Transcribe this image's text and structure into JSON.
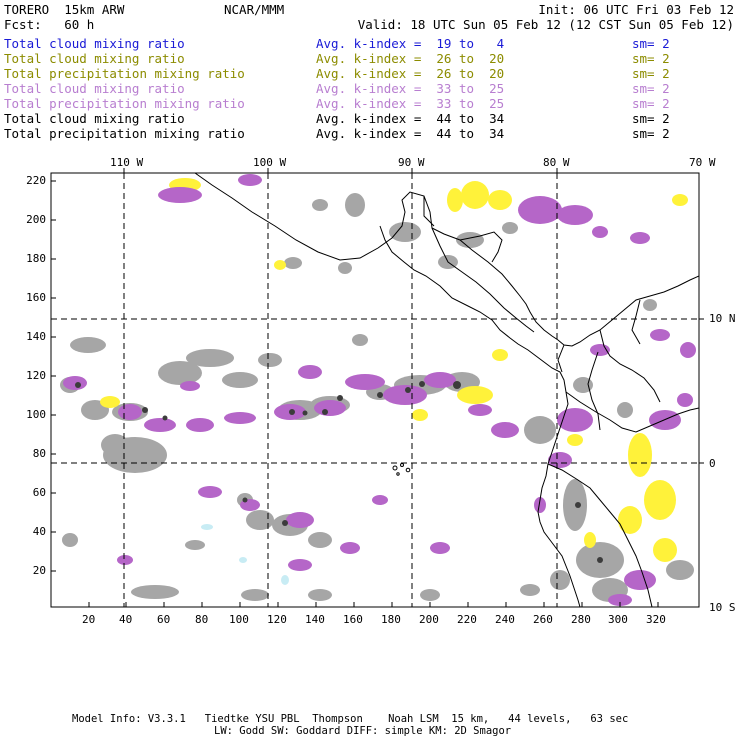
{
  "header": {
    "model": "TORERO  15km ARW",
    "org": "NCAR/MMM",
    "init": "Init: 06 UTC Fri 03 Feb 12",
    "fcst": "Fcst:   60 h",
    "valid": "Valid: 18 UTC Sun 05 Feb 12 (12 CST Sun 05 Feb 12)"
  },
  "legend": [
    {
      "field": "Total cloud mixing ratio",
      "kindex": "Avg. k-index =  19 to   4",
      "sm": "sm= 2",
      "color": "#1a1ad6"
    },
    {
      "field": "Total cloud mixing ratio",
      "kindex": "Avg. k-index =  26 to  20",
      "sm": "sm= 2",
      "color": "#8c8c00"
    },
    {
      "field": "Total precipitation mixing ratio",
      "kindex": "Avg. k-index =  26 to  20",
      "sm": "sm= 2",
      "color": "#8c8c00"
    },
    {
      "field": "Total cloud mixing ratio",
      "kindex": "Avg. k-index =  33 to  25",
      "sm": "sm= 2",
      "color": "#b87ed0"
    },
    {
      "field": "Total precipitation mixing ratio",
      "kindex": "Avg. k-index =  33 to  25",
      "sm": "sm= 2",
      "color": "#b87ed0"
    },
    {
      "field": "Total cloud mixing ratio",
      "kindex": "Avg. k-index =  44 to  34",
      "sm": "sm= 2",
      "color": "#000000"
    },
    {
      "field": "Total precipitation mixing ratio",
      "kindex": "Avg. k-index =  44 to  34",
      "sm": "sm= 2",
      "color": "#000000"
    }
  ],
  "map": {
    "top_longitudes": [
      "110 W",
      "100 W",
      "90 W",
      "80 W",
      "70 W"
    ],
    "right_latitudes": [
      "10 N",
      "0",
      "10 S"
    ],
    "left_grid_ticks": [
      "220",
      "200",
      "180",
      "160",
      "140",
      "120",
      "100",
      "80",
      "60",
      "40",
      "20"
    ],
    "bottom_grid_ticks": [
      "20",
      "40",
      "60",
      "80",
      "100",
      "120",
      "140",
      "160",
      "180",
      "200",
      "220",
      "240",
      "260",
      "280",
      "300",
      "320"
    ],
    "colors": {
      "gray": "#a6a6a6",
      "dark_gray": "#3c3c3c",
      "purple": "#b566c8",
      "yellow": "#fff23a",
      "light_blue": "#c8ecf4"
    }
  },
  "footer": {
    "line1": "Model Info: V3.3.1   Tiedtke YSU PBL  Thompson    Noah LSM  15 km,   44 levels,   63 sec",
    "line2": "LW: Godd SW: Goddard DIFF: simple KM: 2D Smagor"
  }
}
